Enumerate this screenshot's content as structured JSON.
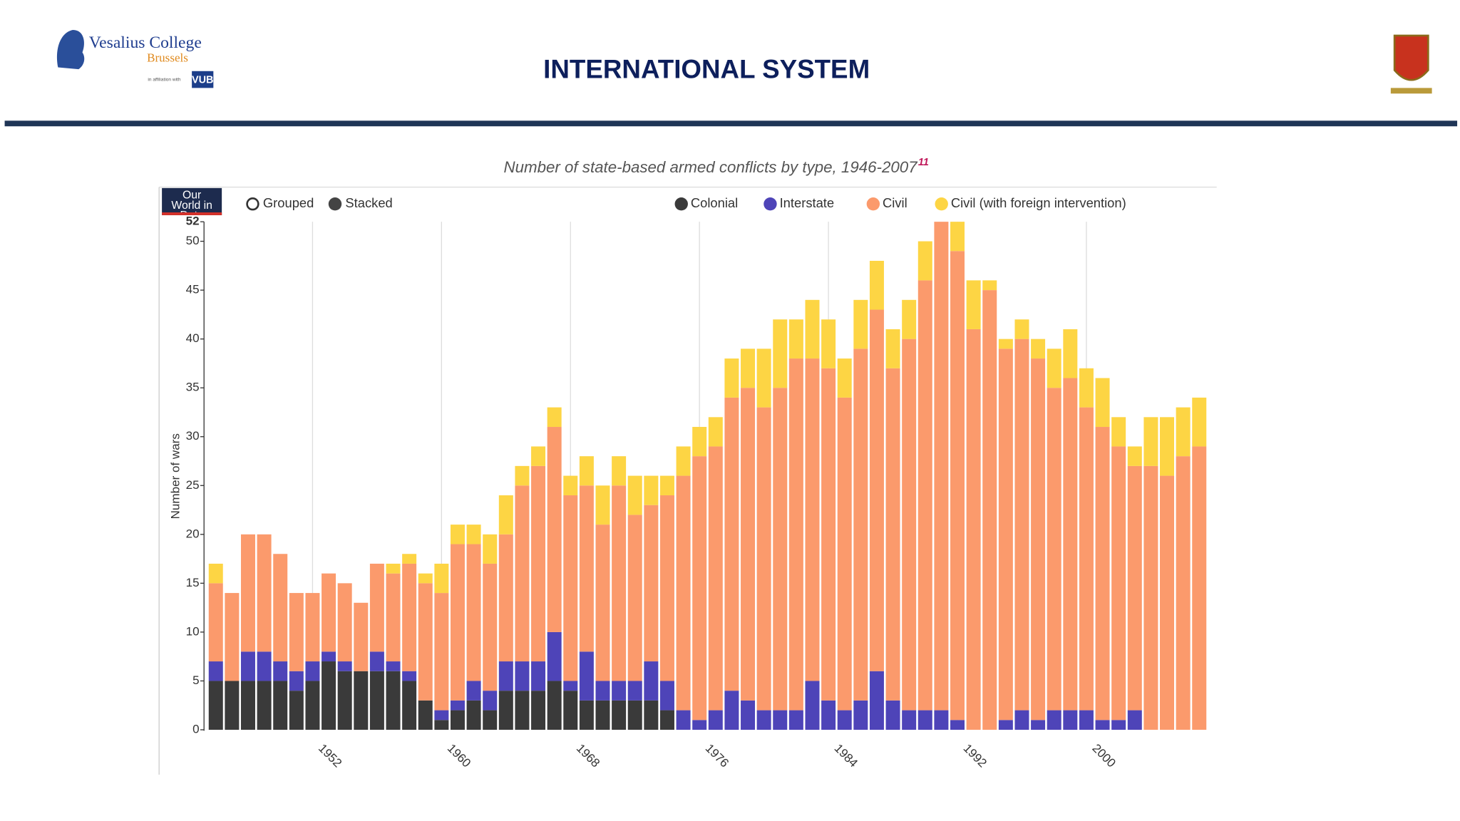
{
  "header": {
    "title": "INTERNATIONAL SYSTEM",
    "logo": {
      "name": "Vesalius College",
      "city": "Brussels",
      "affiliation": "in affiliation with",
      "partner": "VUB"
    }
  },
  "chart_data": {
    "type": "bar",
    "stacked": true,
    "title": "Number of state-based armed conflicts by type, 1946-2007",
    "title_footnote": "11",
    "brand": "Our World in Data",
    "modes": [
      "Grouped",
      "Stacked"
    ],
    "ylabel": "Number of wars",
    "x": [
      1946,
      1947,
      1948,
      1949,
      1950,
      1951,
      1952,
      1953,
      1954,
      1955,
      1956,
      1957,
      1958,
      1959,
      1960,
      1961,
      1962,
      1963,
      1964,
      1965,
      1966,
      1967,
      1968,
      1969,
      1970,
      1971,
      1972,
      1973,
      1974,
      1975,
      1976,
      1977,
      1978,
      1979,
      1980,
      1981,
      1982,
      1983,
      1984,
      1985,
      1986,
      1987,
      1988,
      1989,
      1990,
      1991,
      1992,
      1993,
      1994,
      1995,
      1996,
      1997,
      1998,
      1999,
      2000,
      2001,
      2002,
      2003,
      2004,
      2005,
      2006,
      2007
    ],
    "xlim": [
      1945.5,
      2007.5
    ],
    "xticks": [
      1952,
      1960,
      1968,
      1976,
      1984,
      1992,
      2000
    ],
    "ylim": [
      0,
      52
    ],
    "yticks": [
      0,
      5,
      10,
      15,
      20,
      25,
      30,
      35,
      40,
      45,
      50,
      52
    ],
    "grid": true,
    "legend": "top",
    "series": [
      {
        "name": "Colonial",
        "color": "#3a3a3a",
        "values": [
          5,
          5,
          5,
          5,
          5,
          4,
          5,
          7,
          6,
          6,
          6,
          6,
          5,
          3,
          1,
          2,
          3,
          2,
          4,
          4,
          4,
          5,
          4,
          3,
          3,
          3,
          3,
          3,
          2,
          0,
          0,
          0,
          0,
          0,
          0,
          0,
          0,
          0,
          0,
          0,
          0,
          0,
          0,
          0,
          0,
          0,
          0,
          0,
          0,
          0,
          0,
          0,
          0,
          0,
          0,
          0,
          0,
          0,
          0,
          0,
          0,
          0
        ]
      },
      {
        "name": "Interstate",
        "color": "#4e44b8",
        "values": [
          2,
          0,
          3,
          3,
          2,
          2,
          2,
          1,
          1,
          0,
          2,
          1,
          1,
          0,
          1,
          1,
          2,
          2,
          3,
          3,
          3,
          5,
          1,
          5,
          2,
          2,
          2,
          4,
          3,
          2,
          1,
          2,
          4,
          3,
          2,
          2,
          2,
          5,
          3,
          2,
          3,
          6,
          3,
          2,
          2,
          2,
          1,
          0,
          0,
          1,
          2,
          1,
          2,
          2,
          2,
          1,
          1,
          2,
          0,
          0,
          0,
          0
        ]
      },
      {
        "name": "Civil",
        "color": "#fb9a6c",
        "values": [
          8,
          9,
          12,
          12,
          11,
          8,
          7,
          8,
          8,
          7,
          9,
          9,
          11,
          12,
          12,
          16,
          14,
          13,
          13,
          18,
          20,
          21,
          19,
          17,
          16,
          20,
          17,
          16,
          19,
          24,
          27,
          27,
          30,
          32,
          31,
          33,
          36,
          33,
          34,
          32,
          36,
          37,
          34,
          38,
          44,
          50,
          48,
          41,
          45,
          38,
          38,
          37,
          33,
          34,
          31,
          30,
          28,
          25,
          27,
          26,
          28,
          29
        ]
      },
      {
        "name": "Civil (with foreign intervention)",
        "color": "#fdd544",
        "values": [
          2,
          0,
          0,
          0,
          0,
          0,
          0,
          0,
          0,
          0,
          0,
          1,
          1,
          1,
          3,
          2,
          2,
          3,
          4,
          2,
          2,
          2,
          2,
          3,
          4,
          3,
          4,
          3,
          2,
          3,
          3,
          3,
          4,
          4,
          6,
          7,
          4,
          6,
          5,
          4,
          5,
          5,
          4,
          4,
          4,
          0,
          3,
          5,
          1,
          1,
          2,
          2,
          4,
          5,
          4,
          5,
          3,
          2,
          5,
          6,
          5,
          5
        ]
      }
    ]
  }
}
